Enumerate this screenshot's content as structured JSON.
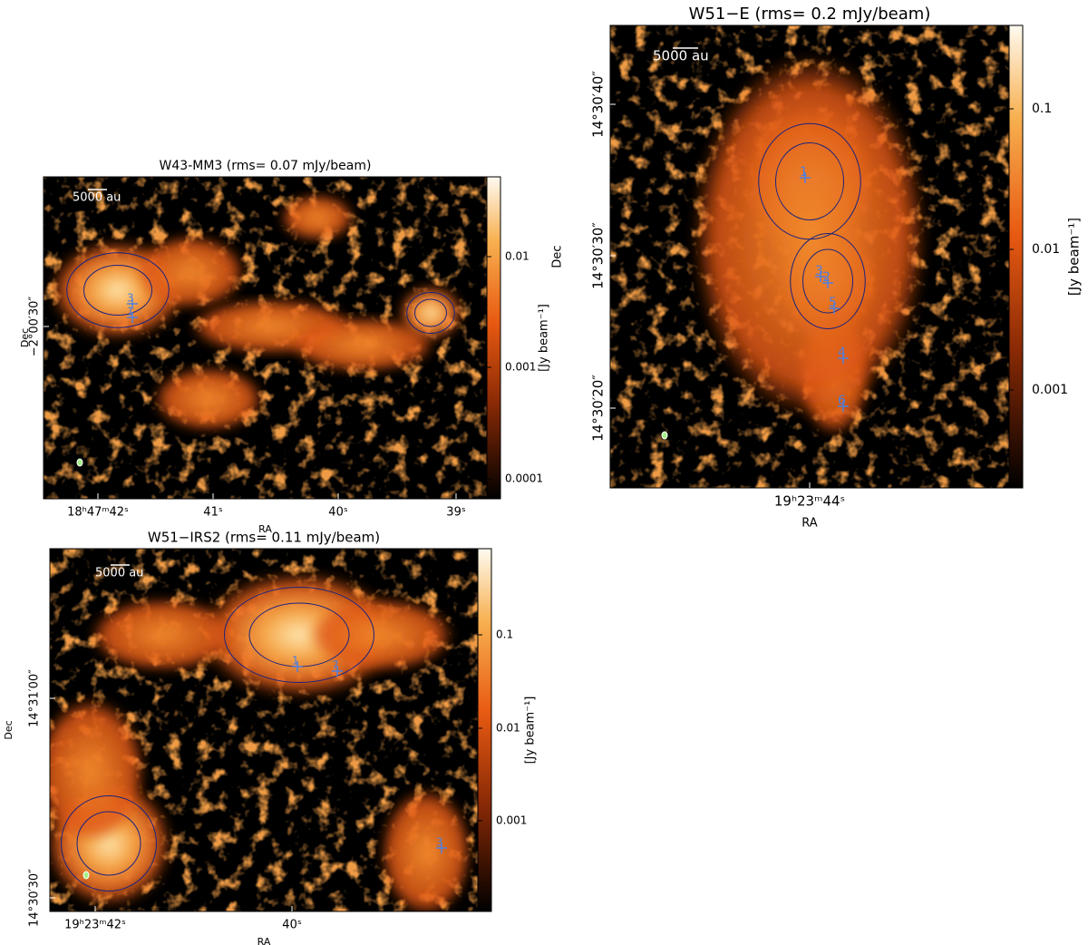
{
  "panels": [
    {
      "title": "W43-MM3 (rms= 0.07 mJy/beam)",
      "x_label": "RA",
      "y_label": "Dec",
      "x_ticks": [
        "18ʰ47ᵐ42ˢ",
        "41ˢ",
        "40ˢ",
        "39ˢ"
      ],
      "y_ticks": [
        "−2°00′30″"
      ],
      "colorbar_ticks": [
        "0.01",
        "0.001",
        "0.0001"
      ],
      "colorbar_label": "[Jy beam⁻¹]",
      "scale_bar": "5000 au",
      "source_labels": [
        "3",
        "1"
      ]
    },
    {
      "title": "W51−E (rms= 0.2 mJy/beam)",
      "x_label": "RA",
      "y_label": "Dec",
      "x_ticks": [
        "19ʰ23ᵐ44ˢ"
      ],
      "y_ticks": [
        "14°30′40″",
        "14°30′30″",
        "14°30′20″"
      ],
      "colorbar_ticks": [
        "0.1",
        "0.01",
        "0.001"
      ],
      "colorbar_label": "[Jy beam⁻¹]",
      "scale_bar": "5000 au",
      "source_labels": [
        "1",
        "2",
        "3",
        "4",
        "5",
        "6"
      ]
    },
    {
      "title": "W51−IRS2 (rms= 0.11 mJy/beam)",
      "x_label": "RA",
      "y_label": "Dec",
      "x_ticks": [
        "19ʰ23ᵐ42ˢ",
        "40ˢ"
      ],
      "y_ticks": [
        "14°31′00″",
        "14°30′30″"
      ],
      "colorbar_ticks": [
        "0.1",
        "0.01",
        "0.001"
      ],
      "colorbar_label": "[Jy beam⁻¹]",
      "scale_bar": "5000 au",
      "source_labels": [
        "1",
        "7",
        "3"
      ]
    }
  ]
}
